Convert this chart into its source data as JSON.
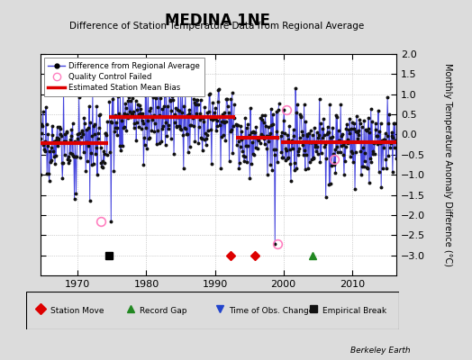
{
  "title": "MEDINA 1NE",
  "subtitle": "Difference of Station Temperature Data from Regional Average",
  "ylabel": "Monthly Temperature Anomaly Difference (°C)",
  "ylim": [
    -3.5,
    2.0
  ],
  "xlim": [
    1964.5,
    2016.5
  ],
  "yticks": [
    -3,
    -2.5,
    -2,
    -1.5,
    -1,
    -0.5,
    0,
    0.5,
    1,
    1.5,
    2
  ],
  "xticks": [
    1970,
    1980,
    1990,
    2000,
    2010
  ],
  "bg_color": "#dcdcdc",
  "plot_bg_color": "#ffffff",
  "line_color": "#4444dd",
  "dot_color": "#111111",
  "bias_color": "#dd0000",
  "segments": [
    {
      "x_start": 1964.5,
      "x_end": 1974.4,
      "bias": -0.22
    },
    {
      "x_start": 1974.6,
      "x_end": 1992.9,
      "bias": 0.44
    },
    {
      "x_start": 1993.1,
      "x_end": 1999.4,
      "bias": -0.07
    },
    {
      "x_start": 1999.6,
      "x_end": 2016.5,
      "bias": -0.2
    }
  ],
  "empirical_breaks": [
    1974.5
  ],
  "station_moves": [
    1992.3,
    1995.8
  ],
  "record_gaps": [
    2004.3
  ],
  "obs_changes": [],
  "qc_failed": [
    {
      "year": 1973.4,
      "val": -2.15
    },
    {
      "year": 1999.1,
      "val": -2.72
    },
    {
      "year": 2000.5,
      "val": 0.62
    },
    {
      "year": 2007.4,
      "val": -0.62
    }
  ],
  "event_y": -3.0,
  "seed": 17
}
